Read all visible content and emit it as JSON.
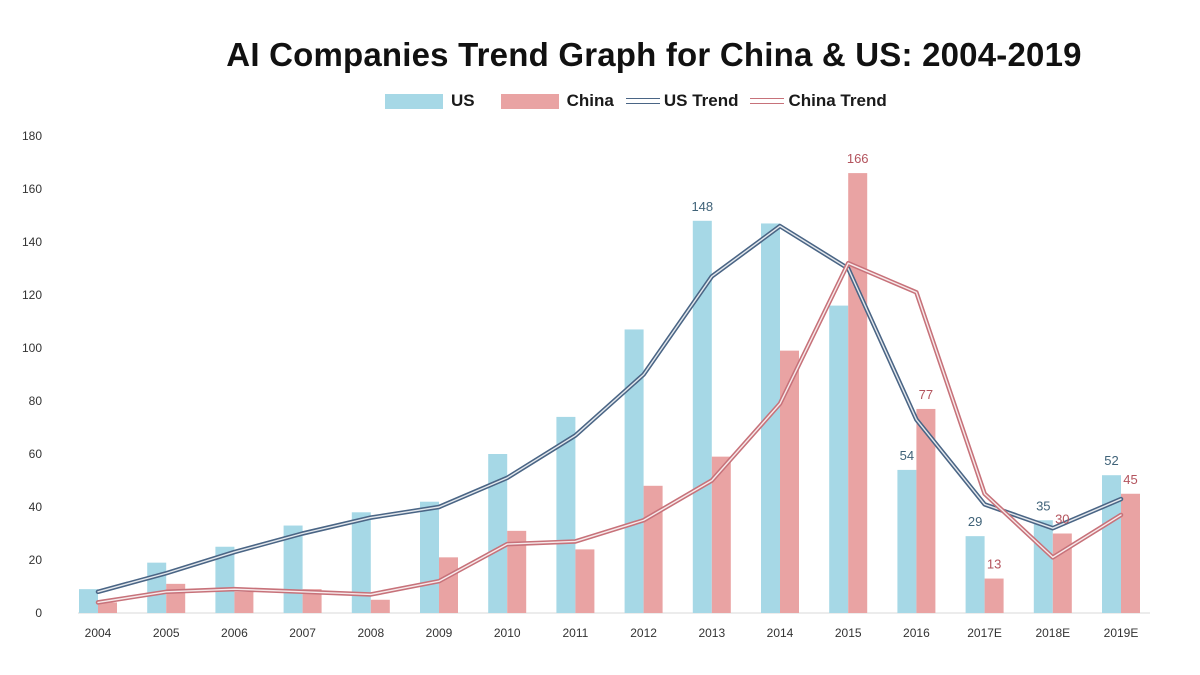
{
  "chart_data": {
    "type": "bar",
    "title": "AI Companies Trend Graph for China & US: 2004-2019",
    "categories": [
      "2004",
      "2005",
      "2006",
      "2007",
      "2008",
      "2009",
      "2010",
      "2011",
      "2012",
      "2013",
      "2014",
      "2015",
      "2016",
      "2017E",
      "2018E",
      "2019E"
    ],
    "series": [
      {
        "name": "US",
        "kind": "bar",
        "color": "#a6d8e6",
        "values": [
          9,
          19,
          25,
          33,
          38,
          42,
          60,
          74,
          107,
          148,
          147,
          116,
          54,
          29,
          35,
          52
        ]
      },
      {
        "name": "China",
        "kind": "bar",
        "color": "#e9a3a3",
        "values": [
          4,
          11,
          8,
          9,
          5,
          21,
          31,
          24,
          48,
          59,
          99,
          166,
          77,
          13,
          30,
          45
        ]
      },
      {
        "name": "US Trend",
        "kind": "line",
        "color": "#4a6585",
        "values": [
          8,
          15,
          23,
          30,
          36,
          40,
          51,
          67,
          90,
          127,
          146,
          130,
          73,
          41,
          32,
          43
        ]
      },
      {
        "name": "China Trend",
        "kind": "line",
        "color": "#c7727a",
        "values": [
          4,
          8,
          9,
          8,
          7,
          12,
          26,
          27,
          35,
          50,
          79,
          132,
          121,
          45,
          21,
          37
        ]
      }
    ],
    "data_labels": {
      "US": {
        "2013": "148",
        "2016": "54",
        "2017E": "29",
        "2018E": "35",
        "2019E": "52"
      },
      "China": {
        "2015": "166",
        "2016": "77",
        "2017E": "13",
        "2018E": "30",
        "2019E": "45"
      }
    },
    "ylim": [
      0,
      180
    ],
    "yticks": [
      0,
      20,
      40,
      60,
      80,
      100,
      120,
      140,
      160,
      180
    ],
    "xlabel": "",
    "ylabel": "",
    "grid": false,
    "legend_position": "top-center"
  }
}
